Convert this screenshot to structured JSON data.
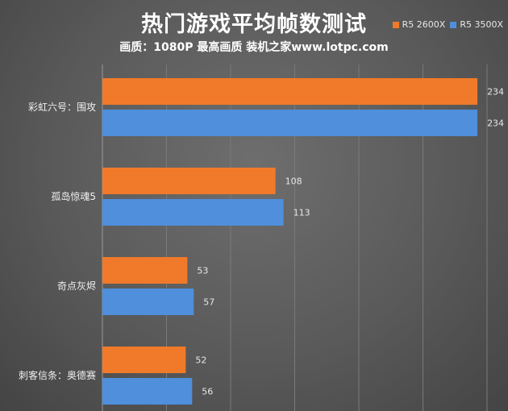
{
  "chart_data": {
    "type": "bar",
    "orientation": "horizontal",
    "title": "热门游戏平均帧数测试",
    "subtitle": "画质：1080P 最高画质 装机之家www.lotpc.com",
    "categories": [
      "彩虹六号：围攻",
      "孤岛惊魂5",
      "奇点灰烬",
      "刺客信条：奥德赛"
    ],
    "series": [
      {
        "name": "R5 2600X",
        "color": "#f07a2a",
        "values": [
          234,
          108,
          53,
          52
        ]
      },
      {
        "name": "R5 3500X",
        "color": "#4f8fdc",
        "values": [
          234,
          113,
          57,
          56
        ]
      }
    ],
    "xlim": [
      0,
      240
    ],
    "grid": true,
    "legend_position": "top-right"
  }
}
